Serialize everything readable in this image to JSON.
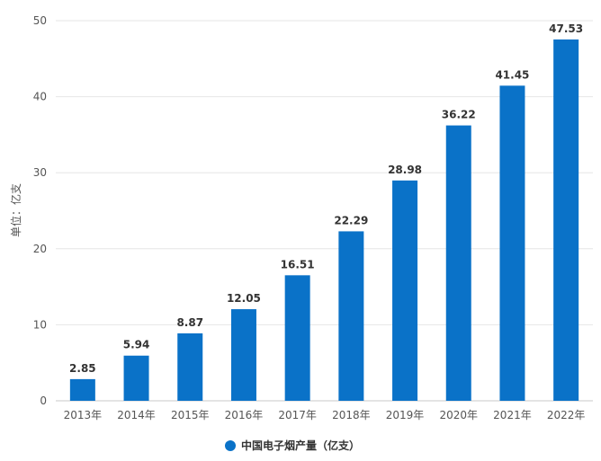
{
  "chart_data": {
    "type": "bar",
    "categories": [
      "2013年",
      "2014年",
      "2015年",
      "2016年",
      "2017年",
      "2018年",
      "2019年",
      "2020年",
      "2021年",
      "2022年"
    ],
    "series": [
      {
        "name": "中国电子烟产量（亿支）",
        "values": [
          2.85,
          5.94,
          8.87,
          12.05,
          16.51,
          22.29,
          28.98,
          36.22,
          41.45,
          47.53
        ],
        "color": "#0a72c8"
      }
    ],
    "value_labels": [
      "2.85",
      "5.94",
      "8.87",
      "12.05",
      "16.51",
      "22.29",
      "28.98",
      "36.22",
      "41.45",
      "47.53"
    ],
    "ylabel": "单位：亿支",
    "ylim": [
      0,
      50
    ],
    "yticks": [
      0,
      10,
      20,
      30,
      40,
      50
    ],
    "grid": "y",
    "legend": "bottom-center"
  }
}
